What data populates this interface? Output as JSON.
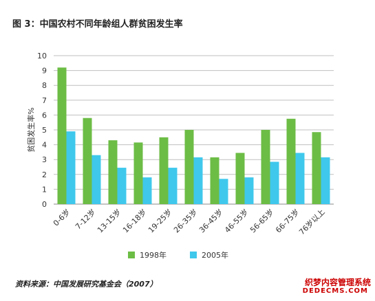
{
  "title": "图 3：中国农村不同年龄组人群贫困发生率",
  "source": "资料来源：中国发展研究基金会（2007）",
  "watermark": {
    "line1": "织梦内容管理系统",
    "line2": "DEDECMS.COM"
  },
  "colors": {
    "s1998": "#6cbd45",
    "s2005": "#3fc8ec",
    "grid": "#bfbfbf",
    "axis": "#888888"
  },
  "chart_data": {
    "type": "bar",
    "title": "图 3：中国农村不同年龄组人群贫困发生率",
    "xlabel": "",
    "ylabel": "贫困发生率%",
    "ylim": [
      0,
      10
    ],
    "yticks": [
      0,
      1,
      2,
      3,
      4,
      5,
      6,
      7,
      8,
      9,
      10
    ],
    "grid": true,
    "legend_position": "bottom",
    "categories": [
      "0-6岁",
      "7-12岁",
      "13-15岁",
      "16-18岁",
      "19-25岁",
      "26-35岁",
      "36-45岁",
      "46-55岁",
      "56-65岁",
      "66-75岁",
      "76岁以上"
    ],
    "series": [
      {
        "name": "1998年",
        "values": [
          9.2,
          5.8,
          4.3,
          4.15,
          4.5,
          5.0,
          3.15,
          3.45,
          5.0,
          5.75,
          4.85
        ]
      },
      {
        "name": "2005年",
        "values": [
          4.9,
          3.3,
          2.45,
          1.8,
          2.45,
          3.15,
          1.7,
          1.8,
          2.85,
          3.45,
          3.15
        ]
      }
    ]
  }
}
